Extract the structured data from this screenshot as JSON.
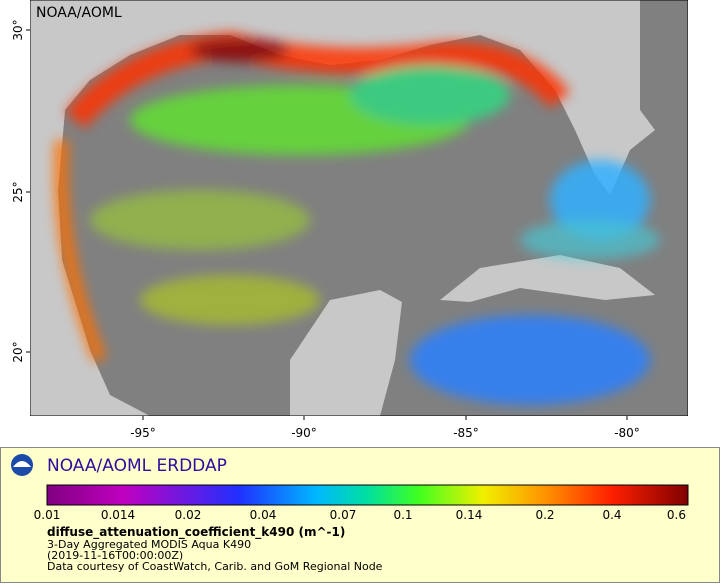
{
  "map": {
    "watermark": "NOAA/AOML",
    "lat_labels": [
      "30°",
      "25°",
      "20°"
    ],
    "lon_labels": [
      "-95°",
      "-90°",
      "-85°",
      "-80°"
    ]
  },
  "legend": {
    "title": "NOAA/AOML ERDDAP",
    "colorbar_labels": [
      "0.01",
      "0.014",
      "0.02",
      "0.04",
      "0.07",
      "0.1",
      "0.14",
      "0.2",
      "0.4",
      "0.6"
    ],
    "variable": "diffuse_attenuation_coefficient_k490 (m^-1)",
    "lines": [
      "3-Day Aggregated MODIS Aqua K490",
      "(2019-11-16T00:00:00Z)",
      "Data courtesy of CoastWatch, Carib. and GoM Regional Node"
    ]
  }
}
